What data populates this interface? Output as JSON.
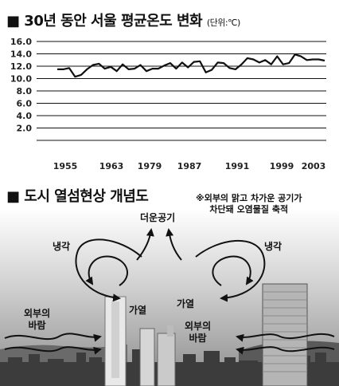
{
  "chart_section": {
    "bullet": "■",
    "title": "30년 동안 서울 평균온도 변화",
    "unit": "(단위:℃)"
  },
  "chart_data": {
    "type": "line",
    "title": "30년 동안 서울 평균온도 변화",
    "unit": "단위:℃",
    "ylim": [
      0,
      16
    ],
    "yticks": [
      "16.0",
      "14.0",
      "12.0",
      "10.0",
      "8.0",
      "6.0",
      "4.0",
      "2.0"
    ],
    "xticks": [
      "1955",
      "1963",
      "1979",
      "1987",
      "1991",
      "1999",
      "2003"
    ],
    "grid": true,
    "series": [
      {
        "values": [
          11.5,
          11.5,
          11.7,
          10.3,
          10.6,
          11.5,
          12.2,
          12.4,
          11.6,
          11.9,
          11.2,
          12.3,
          11.5,
          11.6,
          12.2,
          11.2,
          11.6,
          11.6,
          12.1,
          12.5,
          11.6,
          12.6,
          11.8,
          12.7,
          12.8,
          11.0,
          11.4,
          12.6,
          12.5,
          11.7,
          11.5,
          12.3,
          13.3,
          13.1,
          12.6,
          13.0,
          12.3,
          13.6,
          12.3,
          12.5,
          13.9,
          13.6,
          13.0,
          13.1,
          13.1,
          12.9
        ]
      }
    ]
  },
  "diagram": {
    "bullet": "■",
    "title": "도시 열섬현상 개념도",
    "note_line1": "※외부의 맑고 차가운 공기가",
    "note_line2": "차단돼 오염물질 축적",
    "labels": {
      "warm_air_up": "더운공기",
      "cooling_left": "냉각",
      "cooling_right": "냉각",
      "heating_left": "가열",
      "heating_right": "가열",
      "outside_wind_left_1": "외부의",
      "outside_wind_left_2": "바람",
      "outside_wind_right_1": "외부의",
      "outside_wind_right_2": "바람"
    }
  }
}
